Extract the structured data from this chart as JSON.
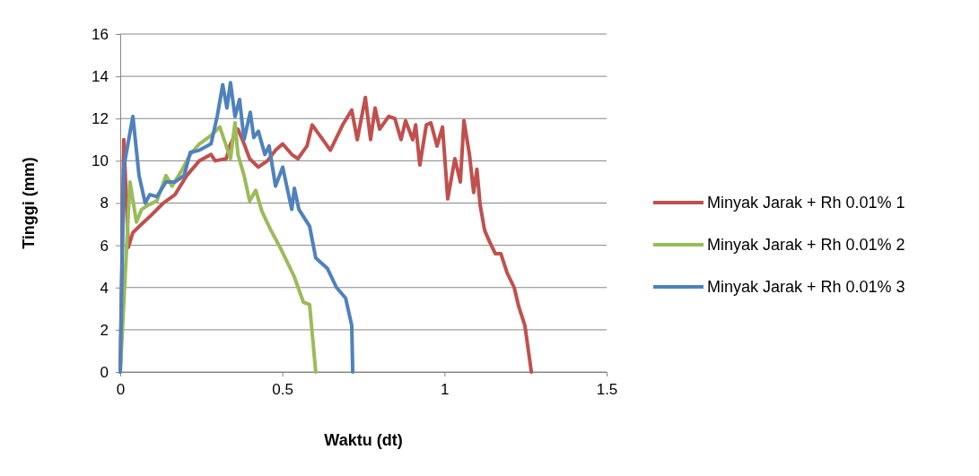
{
  "chart_data": {
    "type": "line",
    "xlabel": "Waktu (dt)",
    "ylabel": "Tinggi (mm)",
    "xlim": [
      0,
      1.5
    ],
    "xticks": [
      0,
      0.5,
      1,
      1.5
    ],
    "ylim": [
      0,
      16
    ],
    "yticks": [
      0,
      2,
      4,
      6,
      8,
      10,
      12,
      14,
      16
    ],
    "grid": "y",
    "legend": "right",
    "marker": "none",
    "line_style": "solid",
    "series": [
      {
        "name": "Minyak Jarak + Rh 0.01% 1",
        "color": "#c0504d",
        "x": [
          0,
          0.011,
          0.025,
          0.039,
          0.066,
          0.094,
          0.133,
          0.169,
          0.205,
          0.244,
          0.28,
          0.293,
          0.327,
          0.34,
          0.363,
          0.382,
          0.399,
          0.426,
          0.454,
          0.479,
          0.501,
          0.529,
          0.548,
          0.576,
          0.592,
          0.62,
          0.648,
          0.686,
          0.714,
          0.731,
          0.756,
          0.772,
          0.786,
          0.8,
          0.828,
          0.847,
          0.866,
          0.88,
          0.902,
          0.911,
          0.924,
          0.944,
          0.958,
          0.977,
          0.994,
          1.01,
          1.032,
          1.049,
          1.06,
          1.077,
          1.09,
          1.1,
          1.11,
          1.124,
          1.138,
          1.157,
          1.174,
          1.193,
          1.215,
          1.229,
          1.248,
          1.268
        ],
        "values": [
          0,
          11.0,
          5.9,
          6.6,
          7.0,
          7.4,
          8.0,
          8.4,
          9.3,
          10.0,
          10.3,
          10.0,
          10.1,
          10.8,
          11.5,
          10.8,
          10.1,
          9.7,
          10.0,
          10.5,
          10.8,
          10.3,
          10.1,
          10.7,
          11.7,
          11.1,
          10.5,
          11.7,
          12.4,
          11.0,
          13.0,
          11.0,
          12.5,
          11.5,
          12.1,
          12.0,
          11.0,
          11.9,
          11.0,
          11.7,
          9.8,
          11.7,
          11.8,
          10.7,
          11.6,
          8.2,
          10.1,
          9.0,
          11.9,
          10.3,
          8.5,
          9.6,
          7.9,
          6.7,
          6.2,
          5.6,
          5.6,
          4.7,
          4.0,
          3.1,
          2.2,
          0
        ]
      },
      {
        "name": "Minyak Jarak + Rh 0.01% 2",
        "color": "#9bbb59",
        "x": [
          0,
          0.03,
          0.05,
          0.066,
          0.086,
          0.113,
          0.141,
          0.16,
          0.188,
          0.216,
          0.244,
          0.28,
          0.307,
          0.327,
          0.34,
          0.354,
          0.363,
          0.382,
          0.399,
          0.418,
          0.437,
          0.465,
          0.493,
          0.509,
          0.537,
          0.565,
          0.584,
          0.603
        ],
        "values": [
          0,
          9.0,
          7.1,
          7.7,
          7.9,
          8.1,
          9.3,
          8.8,
          9.5,
          10.3,
          10.8,
          11.2,
          11.6,
          10.7,
          10.1,
          11.8,
          10.3,
          9.3,
          8.1,
          8.6,
          7.6,
          6.7,
          5.9,
          5.4,
          4.5,
          3.3,
          3.2,
          0
        ]
      },
      {
        "name": "Minyak Jarak + Rh 0.01% 3",
        "color": "#4f81bd",
        "x": [
          0,
          0.011,
          0.039,
          0.058,
          0.077,
          0.091,
          0.113,
          0.141,
          0.169,
          0.197,
          0.216,
          0.244,
          0.28,
          0.299,
          0.316,
          0.329,
          0.34,
          0.354,
          0.368,
          0.382,
          0.401,
          0.412,
          0.426,
          0.446,
          0.459,
          0.479,
          0.501,
          0.529,
          0.537,
          0.551,
          0.584,
          0.603,
          0.639,
          0.667,
          0.695,
          0.714,
          0.717
        ],
        "values": [
          0,
          9.7,
          12.1,
          9.3,
          8.0,
          8.4,
          8.3,
          9.0,
          9.0,
          9.3,
          10.4,
          10.5,
          10.8,
          12.1,
          13.6,
          12.5,
          13.7,
          12.1,
          12.9,
          11.0,
          12.3,
          11.1,
          11.4,
          10.3,
          10.7,
          8.8,
          9.7,
          7.7,
          8.7,
          7.7,
          6.9,
          5.4,
          4.9,
          4.0,
          3.5,
          2.2,
          0
        ]
      }
    ]
  }
}
